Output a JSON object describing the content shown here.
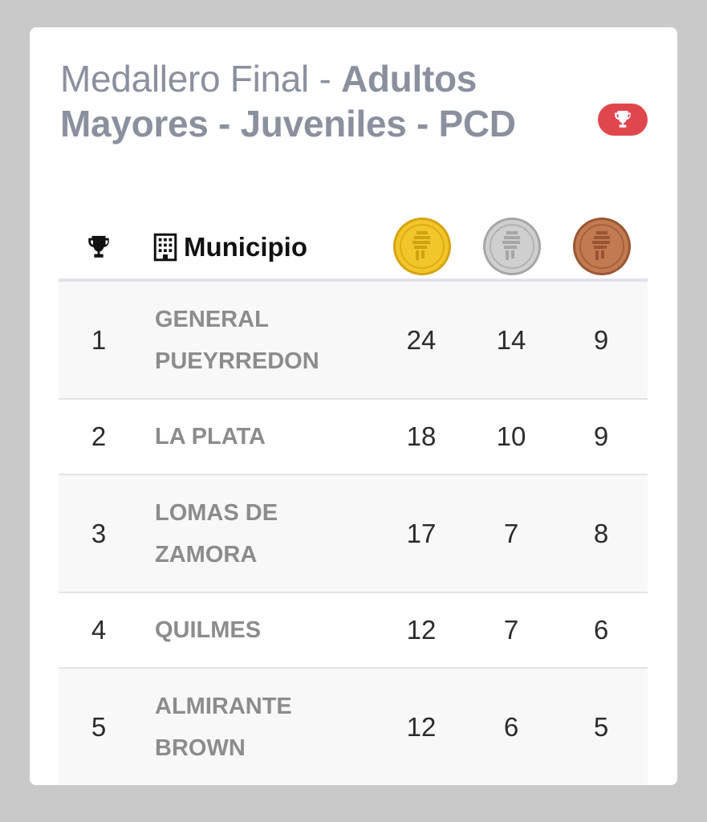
{
  "header": {
    "title_prefix": "Medallero Final - ",
    "title_bold": "Adultos Mayores - Juveniles - PCD",
    "badge_icon": "trophy-icon",
    "badge_color": "#e0474c"
  },
  "table": {
    "columns": {
      "rank_icon": "trophy-icon",
      "municipio_icon": "building-icon",
      "municipio_label": "Municipio",
      "gold_icon": "gold-medal-icon",
      "silver_icon": "silver-medal-icon",
      "bronze_icon": "bronze-medal-icon"
    },
    "rows": [
      {
        "rank": "1",
        "municipio": "GENERAL PUEYRREDON",
        "gold": "24",
        "silver": "14",
        "bronze": "9"
      },
      {
        "rank": "2",
        "municipio": "LA PLATA",
        "gold": "18",
        "silver": "10",
        "bronze": "9"
      },
      {
        "rank": "3",
        "municipio": "LOMAS DE ZAMORA",
        "gold": "17",
        "silver": "7",
        "bronze": "8"
      },
      {
        "rank": "4",
        "municipio": "QUILMES",
        "gold": "12",
        "silver": "7",
        "bronze": "6"
      },
      {
        "rank": "5",
        "municipio": "ALMIRANTE BROWN",
        "gold": "12",
        "silver": "6",
        "bronze": "5"
      }
    ]
  },
  "colors": {
    "gold": "#e9b81c",
    "silver": "#b9b9b9",
    "bronze": "#b66b43"
  }
}
